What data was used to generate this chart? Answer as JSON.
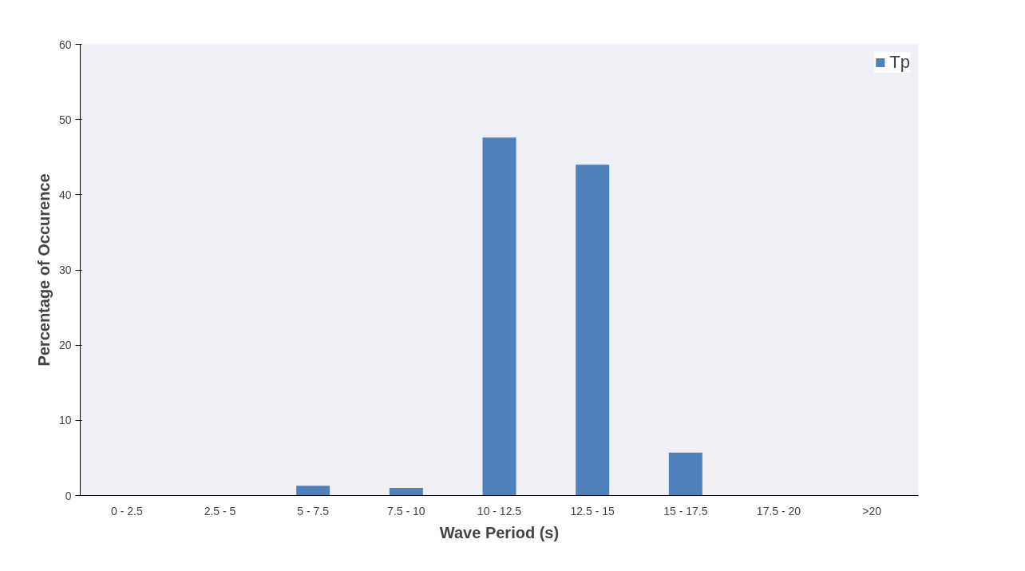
{
  "chart_data": {
    "type": "bar",
    "xlabel": "Wave Period (s)",
    "ylabel": "Percentage of Occurence",
    "categories": [
      "0 - 2.5",
      "2.5 - 5",
      "5 - 7.5",
      "7.5 - 10",
      "10 - 12.5",
      "12.5 - 15",
      "15 - 17.5",
      "17.5 - 20",
      ">20"
    ],
    "series": [
      {
        "name": "Tp",
        "color": "#4f81bd",
        "values": [
          0,
          0,
          1.3,
          1.0,
          47.6,
          44.0,
          5.7,
          0,
          0
        ]
      }
    ],
    "ylim": [
      0,
      60
    ],
    "yticks": [
      0,
      10,
      20,
      30,
      40,
      50,
      60
    ],
    "grid": false,
    "legend": "top right"
  }
}
